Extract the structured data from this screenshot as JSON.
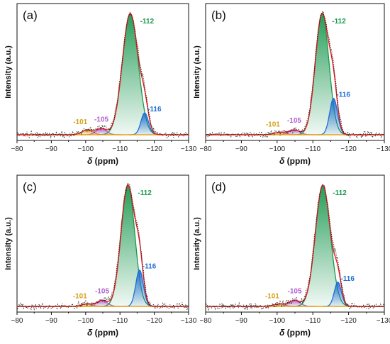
{
  "chart_data": [
    {
      "type": "line",
      "panel_label": "(a)",
      "xlabel_symbol": "δ",
      "xlabel_unit": "(ppm)",
      "ylabel": "Intensity (a.u.)",
      "xlim": [
        -80,
        -130
      ],
      "x_ticks": [
        "−80",
        "−90",
        "−100",
        "−110",
        "−120",
        "−130"
      ],
      "ylim": [
        0,
        1
      ],
      "peaks": [
        {
          "label": "-101",
          "center": -100.5,
          "height": 0.04,
          "width": 1.6,
          "color": "#d4a017"
        },
        {
          "label": "-105",
          "center": -104.6,
          "height": 0.05,
          "width": 1.5,
          "color": "#b05fd0"
        },
        {
          "label": "-112",
          "center": -113.0,
          "height": 1.0,
          "width": 2.3,
          "color": "#1a9850"
        },
        {
          "label": "-116",
          "center": -117.2,
          "height": 0.18,
          "width": 1.1,
          "color": "#1f6fd1"
        }
      ]
    },
    {
      "type": "line",
      "panel_label": "(b)",
      "xlabel_symbol": "δ",
      "xlabel_unit": "(ppm)",
      "ylabel": "Intensity (a.u.)",
      "xlim": [
        -80,
        -130
      ],
      "x_ticks": [
        "−80",
        "−90",
        "−100",
        "−110",
        "−120",
        "−130"
      ],
      "ylim": [
        0,
        1
      ],
      "peaks": [
        {
          "label": "-101",
          "center": -100.8,
          "height": 0.02,
          "width": 1.6,
          "color": "#d4a017"
        },
        {
          "label": "-105",
          "center": -104.8,
          "height": 0.04,
          "width": 1.5,
          "color": "#b05fd0"
        },
        {
          "label": "-112",
          "center": -112.6,
          "height": 1.0,
          "width": 1.9,
          "color": "#1a9850"
        },
        {
          "label": "-116",
          "center": -115.8,
          "height": 0.3,
          "width": 1.1,
          "color": "#1f6fd1"
        }
      ]
    },
    {
      "type": "line",
      "panel_label": "(c)",
      "xlabel_symbol": "δ",
      "xlabel_unit": "(ppm)",
      "ylabel": "Intensity (a.u.)",
      "xlim": [
        -80,
        -130
      ],
      "x_ticks": [
        "−80",
        "−90",
        "−100",
        "−110",
        "−120",
        "−130"
      ],
      "ylim": [
        0,
        1
      ],
      "peaks": [
        {
          "label": "-101",
          "center": -100.4,
          "height": 0.02,
          "width": 1.6,
          "color": "#d4a017"
        },
        {
          "label": "-105",
          "center": -104.8,
          "height": 0.05,
          "width": 1.5,
          "color": "#b05fd0"
        },
        {
          "label": "-112",
          "center": -112.3,
          "height": 1.0,
          "width": 2.0,
          "color": "#1a9850"
        },
        {
          "label": "-116",
          "center": -115.7,
          "height": 0.3,
          "width": 1.1,
          "color": "#1f6fd1"
        }
      ]
    },
    {
      "type": "line",
      "panel_label": "(d)",
      "xlabel_symbol": "δ",
      "xlabel_unit": "(ppm)",
      "ylabel": "Intensity (a.u.)",
      "xlim": [
        -80,
        -130
      ],
      "x_ticks": [
        "−80",
        "−90",
        "−100",
        "−110",
        "−120",
        "−130"
      ],
      "ylim": [
        0,
        1
      ],
      "peaks": [
        {
          "label": "-101",
          "center": -100.6,
          "height": 0.02,
          "width": 1.6,
          "color": "#d4a017"
        },
        {
          "label": "-105",
          "center": -104.9,
          "height": 0.05,
          "width": 1.5,
          "color": "#b05fd0"
        },
        {
          "label": "-112",
          "center": -112.8,
          "height": 1.0,
          "width": 2.1,
          "color": "#1a9850"
        },
        {
          "label": "-116",
          "center": -117.0,
          "height": 0.2,
          "width": 1.0,
          "color": "#1f6fd1"
        }
      ]
    }
  ],
  "colors": {
    "fit": "#e41a1c",
    "baseline": "#e8a317",
    "raw": "#222222"
  }
}
